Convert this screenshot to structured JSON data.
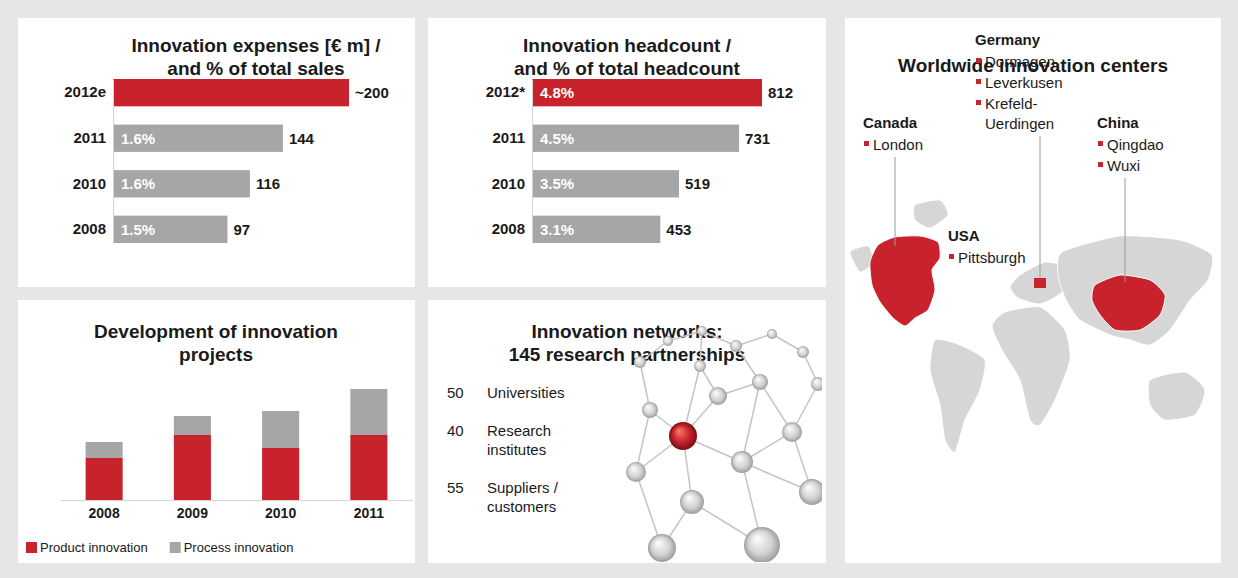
{
  "chart_data": [
    {
      "type": "bar",
      "orientation": "horizontal",
      "title": "Innovation expenses [€ m] / and % of total sales",
      "categories": [
        "2012e",
        "2011",
        "2010",
        "2008"
      ],
      "values": [
        200,
        144,
        116,
        97
      ],
      "value_labels": [
        "~200",
        "144",
        "116",
        "97"
      ],
      "percent_values": [
        null,
        1.6,
        1.6,
        1.5
      ],
      "percent_labels": [
        null,
        "1.6%",
        "1.6%",
        "1.5%"
      ],
      "colors": [
        "#c8232c",
        "#a6a6a6",
        "#a6a6a6",
        "#a6a6a6"
      ],
      "xlim": [
        0,
        200
      ],
      "data_labels": true,
      "tick_labels": "y",
      "grid": false
    },
    {
      "type": "bar",
      "orientation": "horizontal",
      "title": "Innovation headcount / and % of total headcount",
      "categories": [
        "2012*",
        "2011",
        "2010",
        "2008"
      ],
      "values": [
        812,
        731,
        519,
        453
      ],
      "percent_values": [
        4.8,
        4.5,
        3.5,
        3.1
      ],
      "percent_labels": [
        "4.8%",
        "4.5%",
        "3.5%",
        "3.1%"
      ],
      "colors": [
        "#c8232c",
        "#a6a6a6",
        "#a6a6a6",
        "#a6a6a6"
      ],
      "xlim": [
        0,
        812
      ],
      "data_labels": true,
      "tick_labels": "y",
      "grid": false
    },
    {
      "type": "bar",
      "stacked": true,
      "title": "Development of innovation projects",
      "categories": [
        "2008",
        "2009",
        "2010",
        "2011"
      ],
      "series": [
        {
          "name": "Product innovation",
          "color": "#c8232c",
          "values": [
            42,
            65,
            52,
            65
          ]
        },
        {
          "name": "Process innovation",
          "color": "#a6a6a6",
          "values": [
            16,
            19,
            37,
            46
          ]
        }
      ],
      "ylim": [
        0,
        111
      ],
      "tick_labels": "x",
      "legend": "bottom-left",
      "grid": false
    }
  ],
  "innovation_networks": {
    "title": "Innovation networks: 145 research partnerships",
    "partners": [
      {
        "count": 50,
        "label": "Universities"
      },
      {
        "count": 40,
        "label": "Research institutes"
      },
      {
        "count": 55,
        "label": "Suppliers / customers"
      }
    ]
  },
  "innovation_centers": {
    "title": "Worldwide innovation centers",
    "countries": [
      {
        "name": "Germany",
        "cities": [
          "Dormagen",
          "Leverkusen",
          "Krefeld-Uerdingen"
        ]
      },
      {
        "name": "Canada",
        "cities": [
          "London"
        ]
      },
      {
        "name": "China",
        "cities": [
          "Qingdao",
          "Wuxi"
        ]
      },
      {
        "name": "USA",
        "cities": [
          "Pittsburgh"
        ]
      }
    ]
  }
}
